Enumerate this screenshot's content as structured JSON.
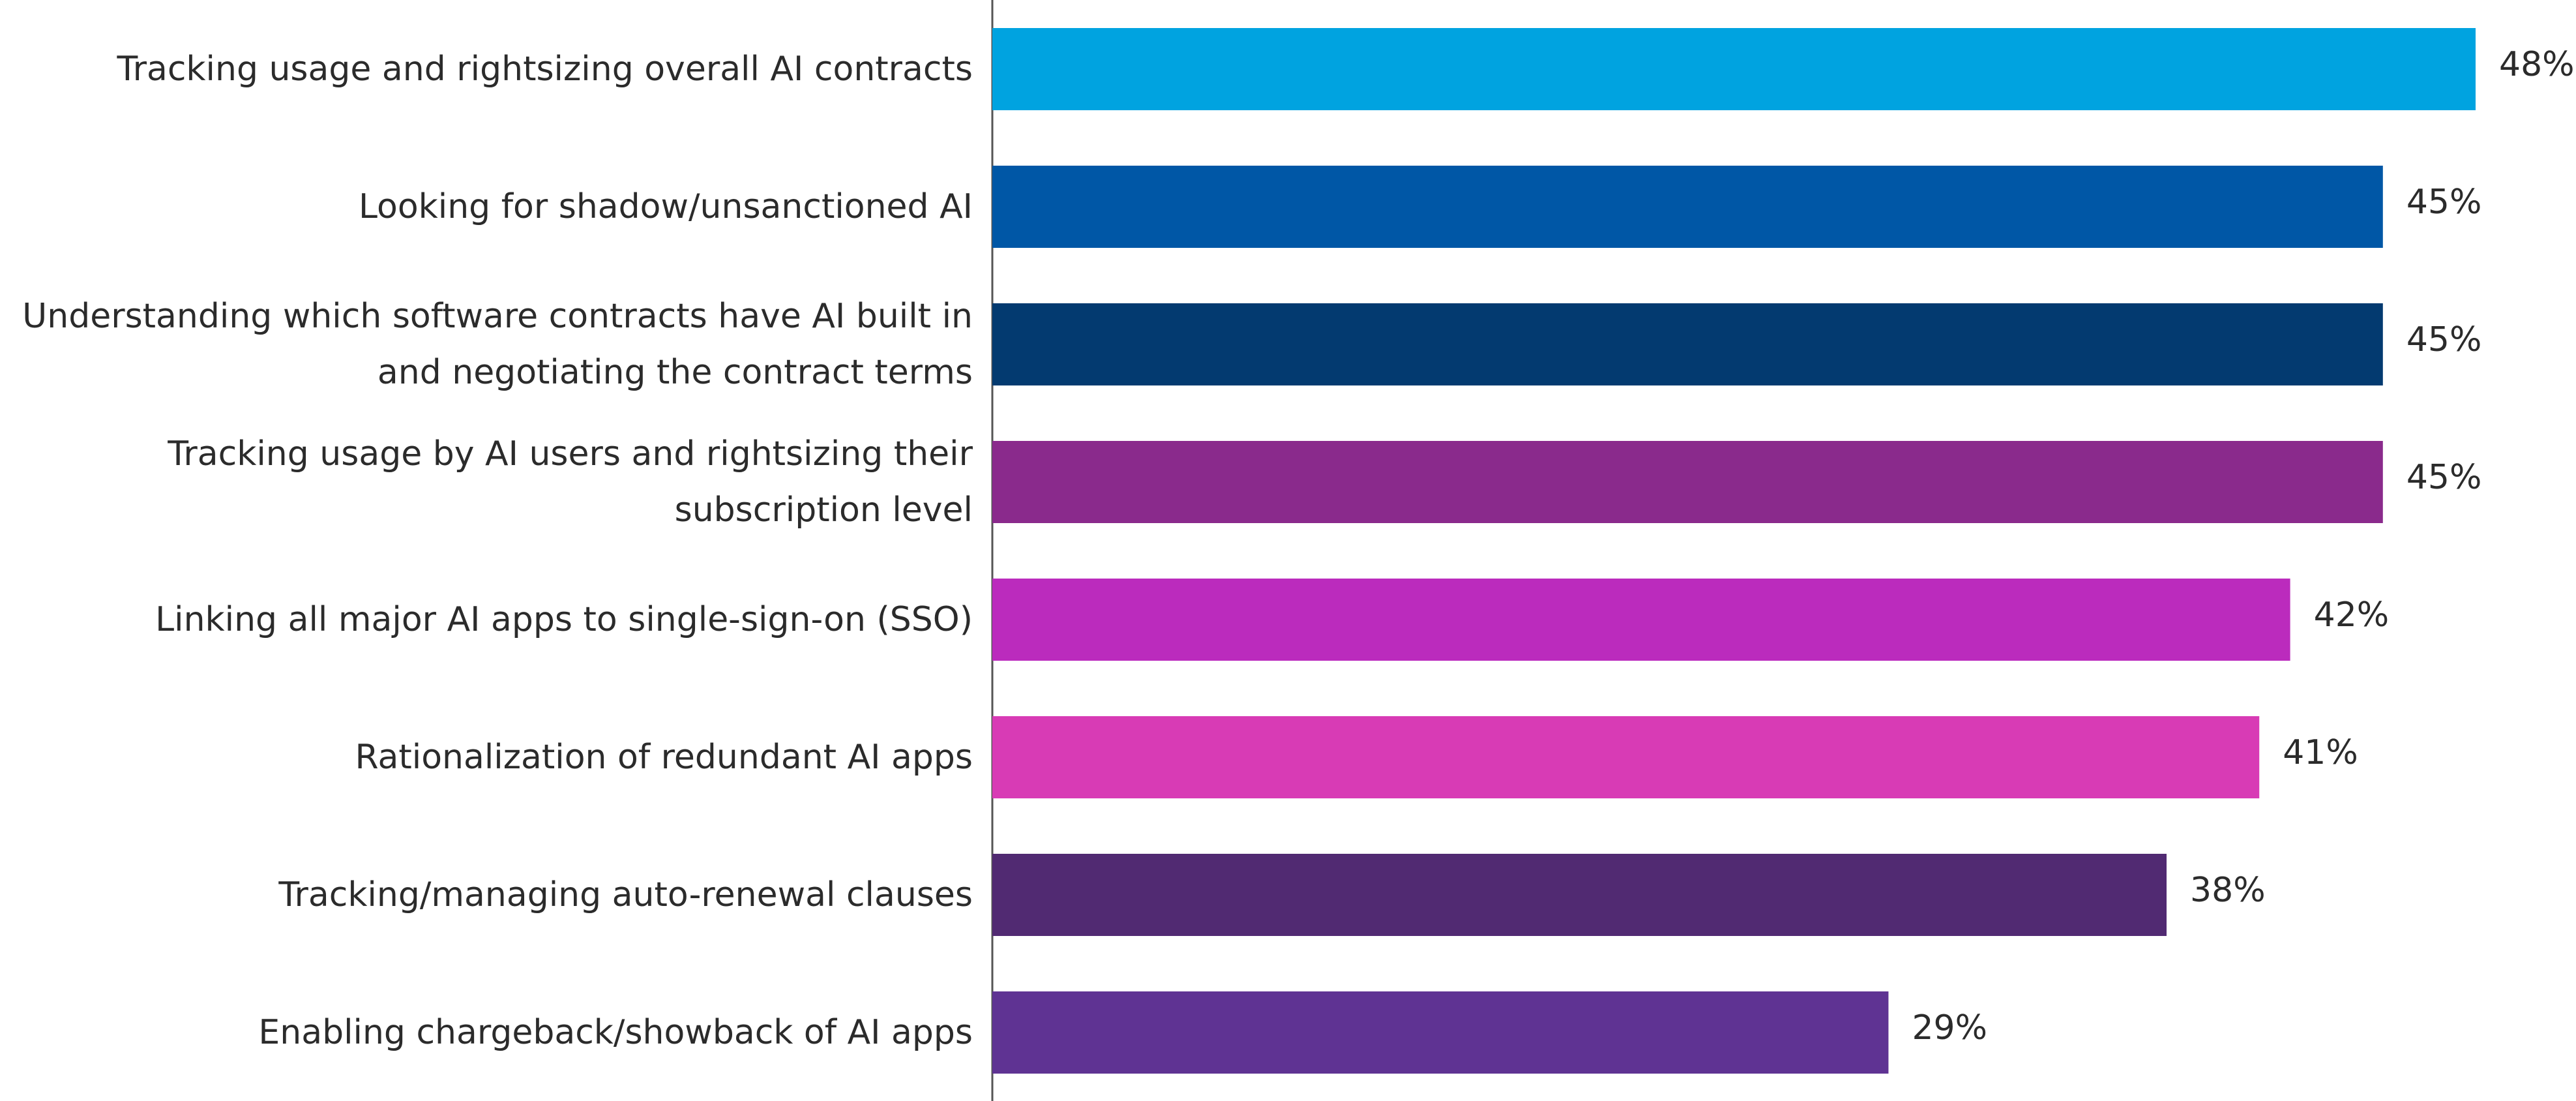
{
  "chart_data": {
    "type": "barh",
    "categories": [
      "Tracking usage and rightsizing overall AI contracts",
      "Looking for shadow/unsanctioned AI",
      "Understanding which software contracts have AI built in\nand negotiating the contract terms",
      "Tracking usage by AI users and rightsizing their\nsubscription level",
      "Linking all major AI apps to single-sign-on (SSO)",
      "Rationalization of redundant AI apps",
      "Tracking/managing auto-renewal clauses",
      "Enabling chargeback/showback of AI apps"
    ],
    "values": [
      48,
      45,
      45,
      45,
      42,
      41,
      38,
      29
    ],
    "value_labels": [
      "48%",
      "45%",
      "45%",
      "45%",
      "42%",
      "41%",
      "38%",
      "29%"
    ],
    "colors": [
      "#00a3e0",
      "#0057a6",
      "#033a70",
      "#8a2a8c",
      "#bb2bbd",
      "#d83bb5",
      "#512a72",
      "#5f3393"
    ]
  }
}
